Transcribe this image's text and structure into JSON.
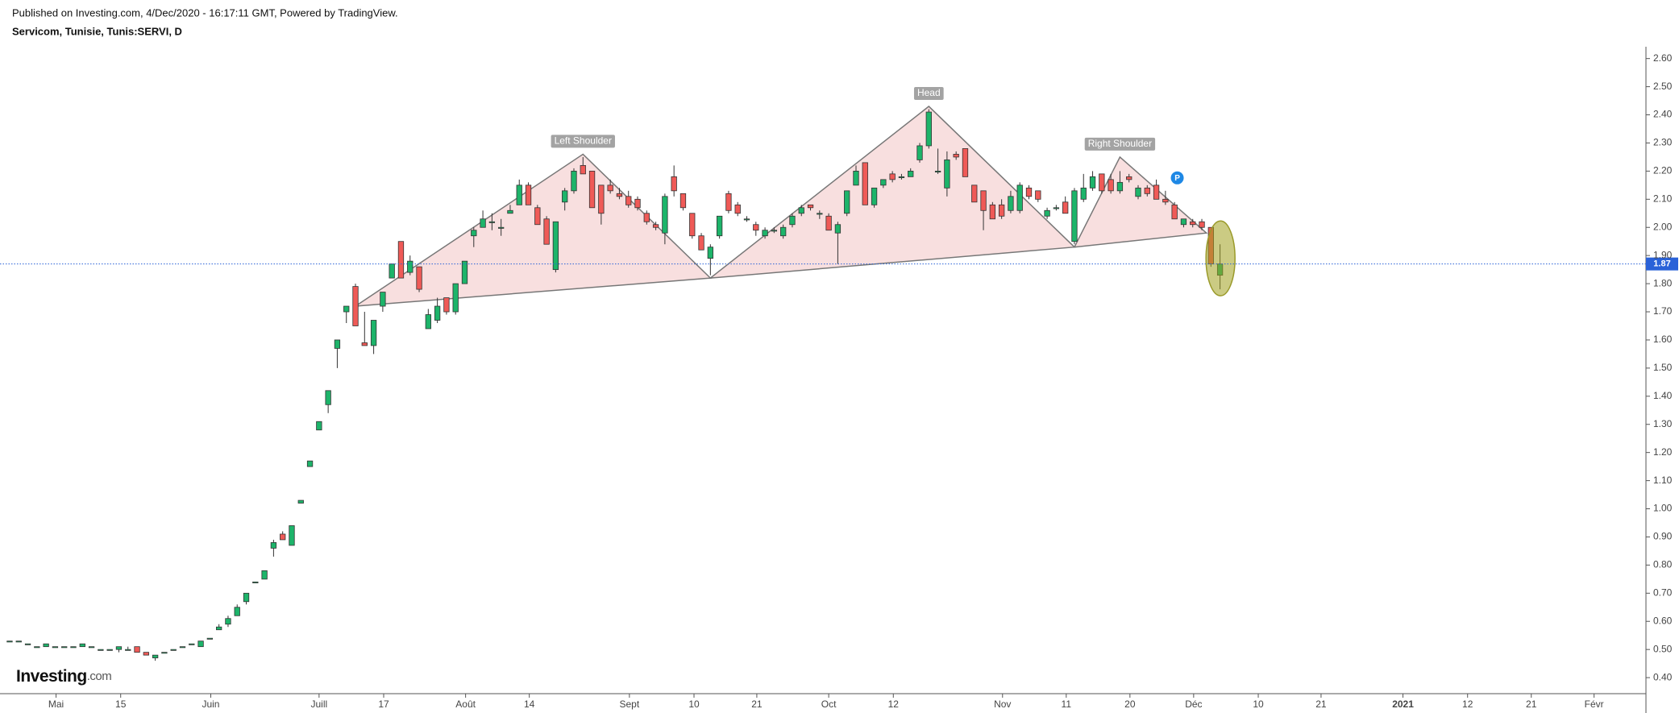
{
  "chart_data": {
    "type": "candlestick",
    "publisher_note": "Published on Investing.com, 4/Dec/2020 - 16:17:11 GMT, Powered by TradingView.",
    "title": "Servicom, Tunisie, Tunis:SERVI, D",
    "logo_main": "Investing",
    "logo_suffix": ".com",
    "up_color": "#1db46a",
    "down_color": "#ef5a57",
    "open": [
      0.53,
      0.53,
      0.52,
      0.51,
      0.51,
      0.51,
      0.51,
      0.51,
      0.51,
      0.51,
      0.5,
      0.5,
      0.5,
      0.5,
      0.51,
      0.49,
      0.47,
      0.49,
      0.5,
      0.51,
      0.52,
      0.51,
      0.54,
      0.57,
      0.59,
      0.62,
      0.67,
      0.74,
      0.75,
      0.86,
      0.91,
      0.87,
      1.02,
      1.15,
      1.28,
      1.37,
      1.57,
      1.7,
      1.79,
      1.59,
      1.58,
      1.72,
      1.82,
      1.95,
      1.84,
      1.86,
      1.64,
      1.67,
      1.75,
      1.7,
      1.8,
      1.97,
      2.0,
      2.02,
      2.0,
      2.05,
      2.08,
      2.15,
      2.07,
      2.03,
      1.85,
      2.09,
      2.13,
      2.22,
      2.2,
      2.15,
      2.15,
      2.12,
      2.11,
      2.1,
      2.05,
      2.01,
      1.98,
      2.18,
      2.12,
      2.05,
      1.97,
      1.89,
      1.97,
      2.12,
      2.08,
      2.03,
      2.01,
      1.97,
      1.99,
      1.97,
      2.01,
      2.05,
      2.08,
      2.05,
      2.04,
      1.98,
      2.05,
      2.15,
      2.23,
      2.08,
      2.15,
      2.19,
      2.18,
      2.18,
      2.24,
      2.29,
      2.2,
      2.14,
      2.26,
      2.28,
      2.15,
      2.13,
      2.08,
      2.08,
      2.06,
      2.06,
      2.14,
      2.13,
      2.04,
      2.07,
      2.09,
      1.95,
      2.1,
      2.14,
      2.19,
      2.17,
      2.13,
      2.18,
      2.11,
      2.14,
      2.15,
      2.1,
      2.08,
      2.01,
      2.02,
      2.02,
      2.0,
      1.83
    ],
    "high": [
      0.53,
      0.53,
      0.52,
      0.51,
      0.52,
      0.51,
      0.51,
      0.51,
      0.52,
      0.51,
      0.5,
      0.5,
      0.51,
      0.51,
      0.51,
      0.49,
      0.48,
      0.49,
      0.5,
      0.51,
      0.52,
      0.53,
      0.54,
      0.59,
      0.62,
      0.66,
      0.7,
      0.74,
      0.78,
      0.89,
      0.92,
      0.94,
      1.03,
      1.17,
      1.31,
      1.42,
      1.6,
      1.72,
      1.8,
      1.7,
      1.67,
      1.77,
      1.87,
      1.95,
      1.9,
      1.86,
      1.71,
      1.75,
      1.75,
      1.8,
      1.88,
      2.0,
      2.06,
      2.05,
      2.03,
      2.08,
      2.17,
      2.16,
      2.08,
      2.04,
      2.02,
      2.14,
      2.21,
      2.25,
      2.2,
      2.15,
      2.17,
      2.14,
      2.13,
      2.11,
      2.06,
      2.02,
      2.12,
      2.22,
      2.12,
      2.05,
      1.98,
      1.94,
      2.04,
      2.13,
      2.09,
      2.04,
      2.02,
      2.0,
      2.0,
      2.01,
      2.05,
      2.08,
      2.08,
      2.06,
      2.05,
      2.02,
      2.13,
      2.22,
      2.23,
      2.14,
      2.17,
      2.2,
      2.19,
      2.21,
      2.3,
      2.42,
      2.28,
      2.27,
      2.27,
      2.28,
      2.15,
      2.13,
      2.09,
      2.1,
      2.13,
      2.16,
      2.15,
      2.13,
      2.07,
      2.08,
      2.11,
      2.14,
      2.19,
      2.2,
      2.19,
      2.19,
      2.2,
      2.19,
      2.15,
      2.15,
      2.17,
      2.13,
      2.09,
      2.03,
      2.03,
      2.03,
      2.0,
      1.94
    ],
    "low": [
      0.53,
      0.53,
      0.52,
      0.51,
      0.51,
      0.51,
      0.51,
      0.51,
      0.51,
      0.51,
      0.5,
      0.5,
      0.49,
      0.5,
      0.49,
      0.48,
      0.46,
      0.49,
      0.5,
      0.51,
      0.52,
      0.51,
      0.54,
      0.57,
      0.58,
      0.62,
      0.66,
      0.74,
      0.75,
      0.83,
      0.89,
      0.87,
      1.02,
      1.15,
      1.28,
      1.34,
      1.5,
      1.66,
      1.65,
      1.58,
      1.55,
      1.7,
      1.82,
      1.82,
      1.83,
      1.77,
      1.64,
      1.66,
      1.69,
      1.69,
      1.8,
      1.93,
      2.0,
      1.99,
      1.97,
      2.05,
      2.08,
      2.08,
      2.01,
      1.94,
      1.84,
      2.06,
      2.12,
      2.19,
      2.07,
      2.01,
      2.12,
      2.1,
      2.07,
      2.06,
      2.01,
      1.99,
      1.94,
      2.11,
      2.06,
      1.96,
      1.92,
      1.83,
      1.96,
      2.05,
      2.04,
      2.02,
      1.97,
      1.96,
      1.98,
      1.96,
      2.0,
      2.04,
      2.06,
      2.03,
      1.99,
      1.87,
      2.04,
      2.15,
      2.08,
      2.07,
      2.14,
      2.16,
      2.17,
      2.18,
      2.23,
      2.28,
      2.19,
      2.11,
      2.24,
      2.18,
      2.09,
      1.99,
      2.03,
      2.03,
      2.05,
      2.05,
      2.1,
      2.09,
      2.03,
      2.06,
      2.05,
      1.94,
      2.09,
      2.13,
      2.12,
      2.12,
      2.12,
      2.16,
      2.1,
      2.11,
      2.1,
      2.08,
      2.03,
      2.0,
      2.0,
      1.99,
      1.86,
      1.78
    ],
    "close": [
      0.53,
      0.53,
      0.52,
      0.51,
      0.52,
      0.51,
      0.51,
      0.51,
      0.52,
      0.51,
      0.5,
      0.5,
      0.51,
      0.5,
      0.49,
      0.48,
      0.48,
      0.49,
      0.5,
      0.51,
      0.52,
      0.53,
      0.54,
      0.58,
      0.61,
      0.65,
      0.7,
      0.74,
      0.78,
      0.88,
      0.89,
      0.94,
      1.03,
      1.17,
      1.31,
      1.42,
      1.6,
      1.72,
      1.65,
      1.58,
      1.67,
      1.77,
      1.87,
      1.82,
      1.88,
      1.78,
      1.69,
      1.72,
      1.7,
      1.8,
      1.88,
      1.99,
      2.03,
      2.02,
      2.0,
      2.06,
      2.15,
      2.08,
      2.01,
      1.94,
      2.02,
      2.13,
      2.2,
      2.19,
      2.07,
      2.05,
      2.13,
      2.11,
      2.08,
      2.07,
      2.02,
      2.0,
      2.11,
      2.13,
      2.07,
      1.97,
      1.92,
      1.93,
      2.04,
      2.06,
      2.05,
      2.03,
      1.99,
      1.99,
      1.99,
      2.0,
      2.04,
      2.07,
      2.07,
      2.05,
      1.99,
      2.01,
      2.13,
      2.2,
      2.08,
      2.14,
      2.17,
      2.17,
      2.18,
      2.2,
      2.29,
      2.41,
      2.2,
      2.24,
      2.25,
      2.18,
      2.09,
      2.06,
      2.03,
      2.04,
      2.11,
      2.15,
      2.11,
      2.1,
      2.06,
      2.07,
      2.05,
      2.13,
      2.14,
      2.18,
      2.13,
      2.13,
      2.16,
      2.17,
      2.14,
      2.12,
      2.1,
      2.09,
      2.03,
      2.03,
      2.01,
      2.0,
      1.87,
      1.87
    ],
    "xlim": [
      -1.06,
      179.8
    ],
    "xticks": [
      {
        "value": 5.1,
        "label": "Mai"
      },
      {
        "value": 12.2,
        "label": "15"
      },
      {
        "value": 22.1,
        "label": "Juin"
      },
      {
        "value": 34.0,
        "label": "Juill"
      },
      {
        "value": 41.1,
        "label": "17"
      },
      {
        "value": 50.1,
        "label": "Août"
      },
      {
        "value": 57.1,
        "label": "14"
      },
      {
        "value": 68.1,
        "label": "Sept"
      },
      {
        "value": 75.2,
        "label": "10"
      },
      {
        "value": 82.1,
        "label": "21"
      },
      {
        "value": 90.0,
        "label": "Oct"
      },
      {
        "value": 97.1,
        "label": "12"
      },
      {
        "value": 109.1,
        "label": "Nov"
      },
      {
        "value": 116.1,
        "label": "11"
      },
      {
        "value": 123.1,
        "label": "20"
      },
      {
        "value": 130.1,
        "label": "Déc"
      },
      {
        "value": 137.2,
        "label": "10"
      },
      {
        "value": 144.1,
        "label": "21"
      },
      {
        "value": 153.1,
        "label": "2021"
      },
      {
        "value": 160.2,
        "label": "12"
      },
      {
        "value": 167.2,
        "label": "21"
      },
      {
        "value": 174.1,
        "label": "Févr"
      }
    ],
    "ylim": [
      0.343,
      2.642
    ],
    "yticks": [
      {
        "value": 0.4,
        "label": "0.40"
      },
      {
        "value": 0.5,
        "label": "0.50"
      },
      {
        "value": 0.6,
        "label": "0.60"
      },
      {
        "value": 0.7,
        "label": "0.70"
      },
      {
        "value": 0.8,
        "label": "0.80"
      },
      {
        "value": 0.9,
        "label": "0.90"
      },
      {
        "value": 1.0,
        "label": "1.00"
      },
      {
        "value": 1.1,
        "label": "1.10"
      },
      {
        "value": 1.2,
        "label": "1.20"
      },
      {
        "value": 1.3,
        "label": "1.30"
      },
      {
        "value": 1.4,
        "label": "1.40"
      },
      {
        "value": 1.5,
        "label": "1.50"
      },
      {
        "value": 1.6,
        "label": "1.60"
      },
      {
        "value": 1.7,
        "label": "1.70"
      },
      {
        "value": 1.8,
        "label": "1.80"
      },
      {
        "value": 1.9,
        "label": "1.90"
      },
      {
        "value": 2.0,
        "label": "2.00"
      },
      {
        "value": 2.1,
        "label": "2.10"
      },
      {
        "value": 2.2,
        "label": "2.20"
      },
      {
        "value": 2.3,
        "label": "2.30"
      },
      {
        "value": 2.4,
        "label": "2.40"
      },
      {
        "value": 2.5,
        "label": "2.50"
      },
      {
        "value": 2.6,
        "label": "2.60"
      }
    ],
    "last_price": 1.87,
    "marker_label": "P",
    "pattern": {
      "x": [
        38,
        63,
        77,
        101,
        117,
        122,
        131.5
      ],
      "y": [
        1.72,
        2.26,
        1.82,
        2.43,
        1.93,
        2.25,
        1.98
      ],
      "labels": [
        "Left Shoulder",
        "Head",
        "Right Shoulder"
      ]
    }
  }
}
